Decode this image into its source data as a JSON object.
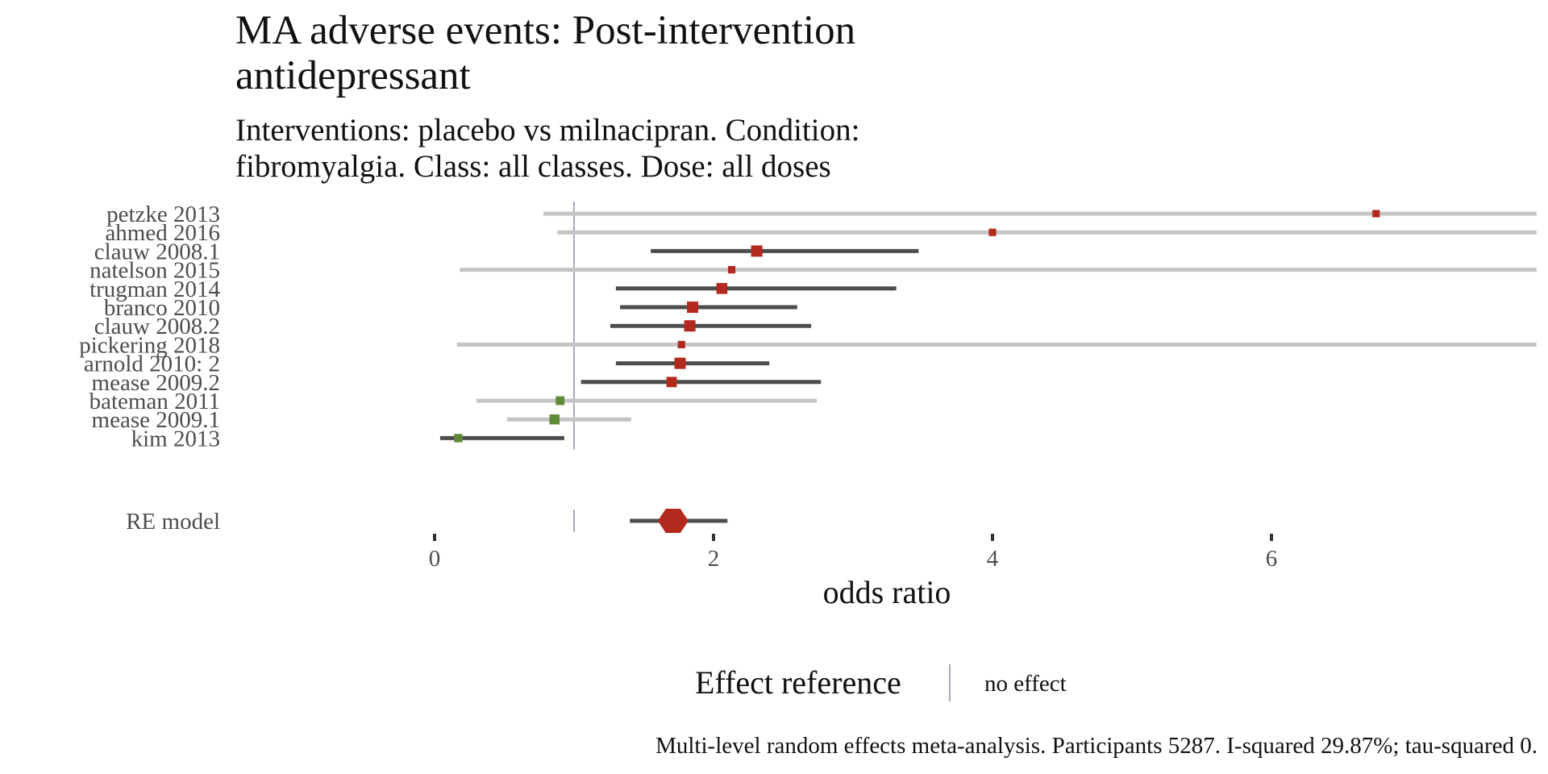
{
  "chart_data": {
    "type": "forest",
    "title_lines": [
      "MA adverse events: Post-intervention",
      "antidepressant"
    ],
    "subtitle_lines": [
      "Interventions: placebo vs milnacipran. Condition:",
      "fibromyalgia. Class: all classes. Dose: all doses"
    ],
    "xlabel": "odds ratio",
    "x_ticks": [
      "0",
      "2",
      "4",
      "6"
    ],
    "xlim": [
      0,
      7.9
    ],
    "reference_line": 1,
    "studies": [
      {
        "name": "petzke 2013",
        "or": 6.75,
        "lower": 0.78,
        "upper": 7.9,
        "ci_emphasis": "light",
        "weight": 0.4,
        "direction": "harm"
      },
      {
        "name": "ahmed 2016",
        "or": 4.0,
        "lower": 0.88,
        "upper": 7.9,
        "ci_emphasis": "light",
        "weight": 0.4,
        "direction": "harm"
      },
      {
        "name": "clauw 2008.1",
        "or": 2.31,
        "lower": 1.55,
        "upper": 3.47,
        "ci_emphasis": "dark",
        "weight": 1.0,
        "direction": "harm"
      },
      {
        "name": "natelson 2015",
        "or": 2.13,
        "lower": 0.18,
        "upper": 7.9,
        "ci_emphasis": "light",
        "weight": 0.4,
        "direction": "harm"
      },
      {
        "name": "trugman 2014",
        "or": 2.06,
        "lower": 1.3,
        "upper": 3.31,
        "ci_emphasis": "dark",
        "weight": 0.95,
        "direction": "harm"
      },
      {
        "name": "branco 2010",
        "or": 1.85,
        "lower": 1.33,
        "upper": 2.6,
        "ci_emphasis": "dark",
        "weight": 1.0,
        "direction": "harm"
      },
      {
        "name": "clauw 2008.2",
        "or": 1.83,
        "lower": 1.26,
        "upper": 2.7,
        "ci_emphasis": "dark",
        "weight": 1.0,
        "direction": "harm"
      },
      {
        "name": "pickering 2018",
        "or": 1.77,
        "lower": 0.16,
        "upper": 7.9,
        "ci_emphasis": "light",
        "weight": 0.4,
        "direction": "harm"
      },
      {
        "name": "arnold 2010: 2",
        "or": 1.76,
        "lower": 1.3,
        "upper": 2.4,
        "ci_emphasis": "dark",
        "weight": 1.0,
        "direction": "harm"
      },
      {
        "name": "mease 2009.2",
        "or": 1.7,
        "lower": 1.05,
        "upper": 2.77,
        "ci_emphasis": "dark",
        "weight": 0.85,
        "direction": "harm"
      },
      {
        "name": "bateman 2011",
        "or": 0.9,
        "lower": 0.3,
        "upper": 2.74,
        "ci_emphasis": "light",
        "weight": 0.6,
        "direction": "benefit"
      },
      {
        "name": "mease 2009.1",
        "or": 0.86,
        "lower": 0.52,
        "upper": 1.41,
        "ci_emphasis": "light",
        "weight": 0.8,
        "direction": "benefit"
      },
      {
        "name": "kim 2013",
        "or": 0.17,
        "lower": 0.04,
        "upper": 0.93,
        "ci_emphasis": "dark",
        "weight": 0.55,
        "direction": "benefit"
      }
    ],
    "summary": {
      "name": "RE model",
      "or": 1.72,
      "lower": 1.4,
      "upper": 2.1,
      "diamond_lower": 1.6,
      "diamond_upper": 1.82
    },
    "legend": {
      "title": "Effect reference",
      "label": "no effect",
      "placement": "bottom"
    },
    "caption": "Multi-level random effects meta-analysis. Participants 5287. I-squared 29.87%; tau-squared 0.",
    "colors": {
      "harm": "#b22a1e",
      "benefit": "#5f8a36",
      "ci_dark": "#4d4d4d",
      "ci_light": "#c4c4c4",
      "reference": "#8c8fa8",
      "tick": "#333333"
    }
  }
}
